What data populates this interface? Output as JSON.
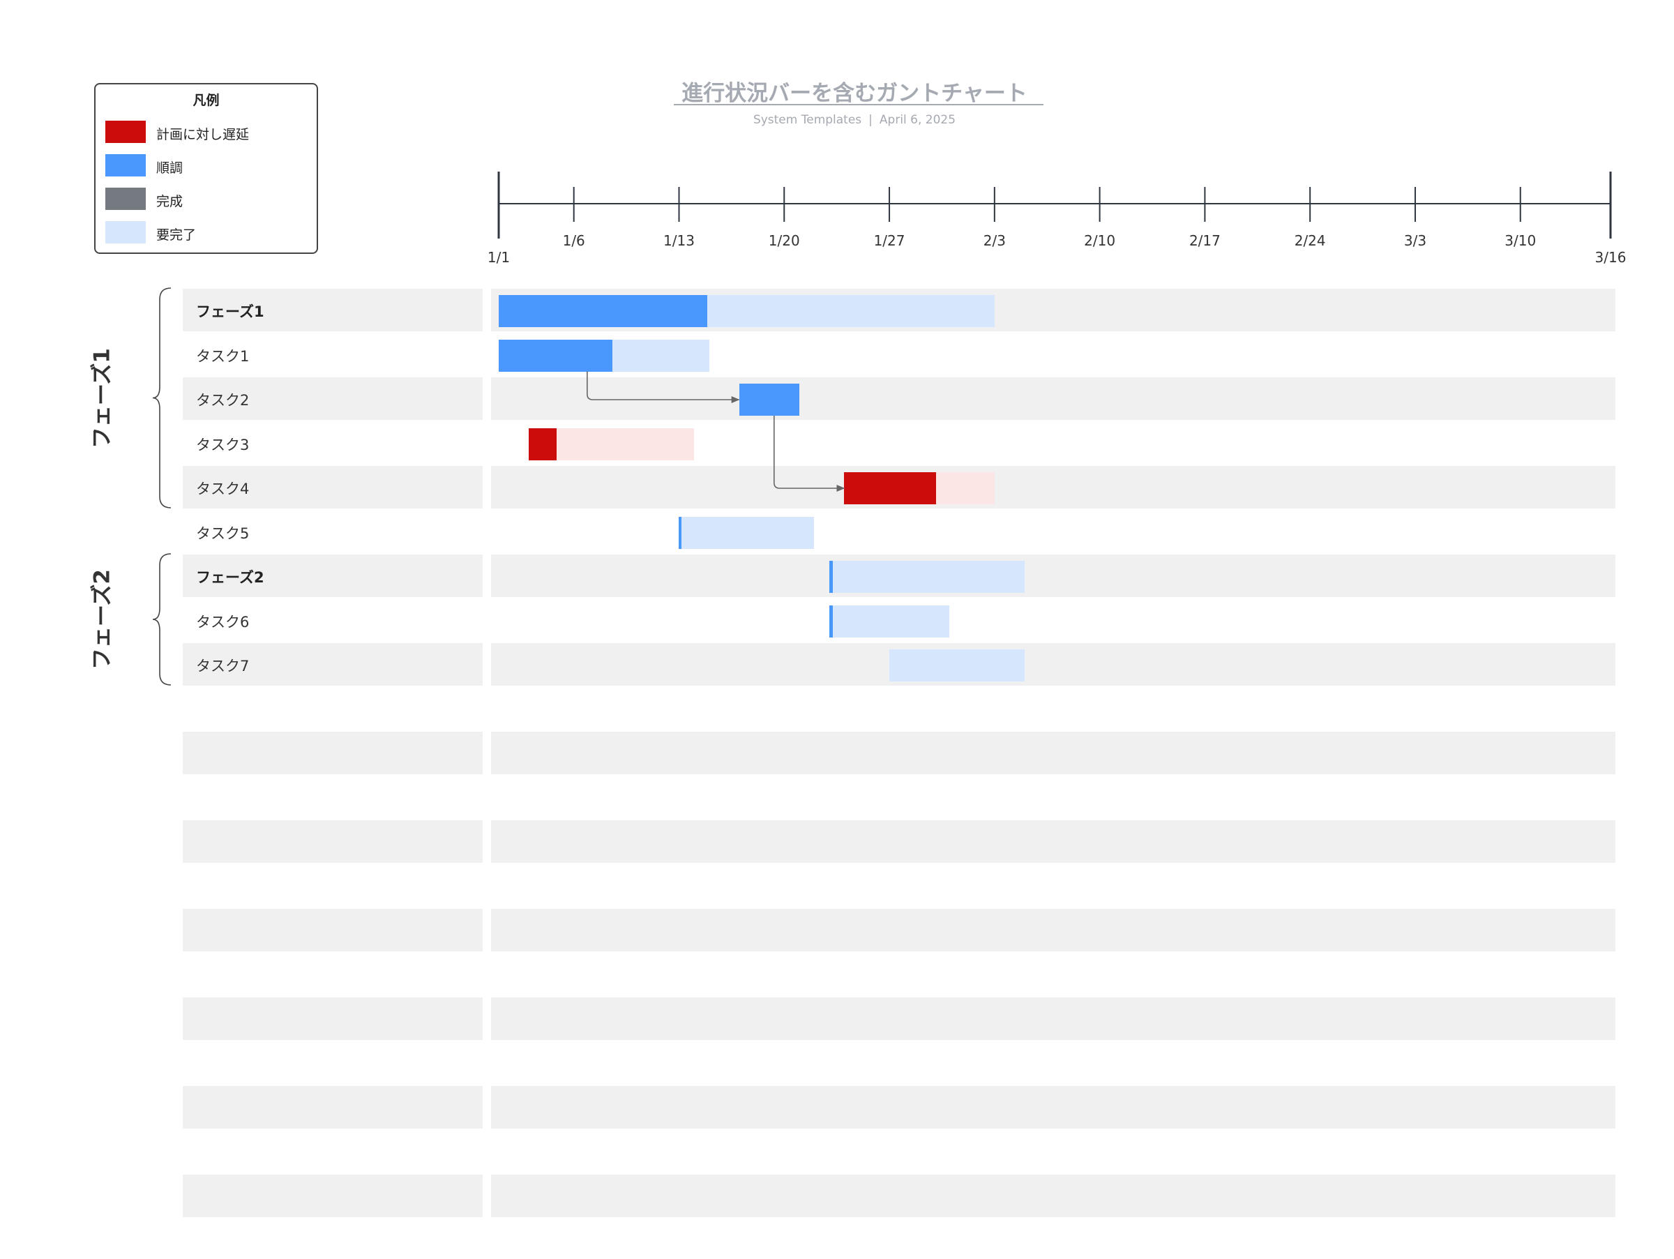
{
  "title": "進行状況バーを含むガントチャート",
  "subtitle": {
    "source": "System Templates",
    "separator": "|",
    "date": "April 6, 2025"
  },
  "legend": {
    "title": "凡例",
    "items": [
      {
        "label": "計画に対し遅延",
        "color": "#cc0b0b"
      },
      {
        "label": "順調",
        "color": "#4a98fd"
      },
      {
        "label": "完成",
        "color": "#757a80"
      },
      {
        "label": "要完了",
        "color": "#d6e7fd"
      }
    ]
  },
  "colors": {
    "on_track": "#4a98fd",
    "on_track_remaining": "#d6e7fd",
    "delayed": "#cc0b0b",
    "delayed_remaining": "#fbe5e5",
    "row_band": "#eff0ef",
    "axis": "#2f3640",
    "connector": "#666666"
  },
  "chart_data": {
    "type": "gantt",
    "axis_start": "2025-01-01",
    "axis_end": "2025-03-16",
    "ticks": [
      "1/1",
      "1/6",
      "1/13",
      "1/20",
      "1/27",
      "2/3",
      "2/10",
      "2/17",
      "2/24",
      "3/3",
      "3/10",
      "3/16"
    ],
    "groups": [
      {
        "label": "フェーズ1",
        "rows": [
          "フェーズ1",
          "タスク1",
          "タスク2",
          "タスク3",
          "タスク4"
        ]
      },
      {
        "label": "フェーズ2",
        "rows": [
          "フェーズ2",
          "タスク6",
          "タスク7"
        ]
      }
    ],
    "rows": [
      {
        "label": "フェーズ1",
        "summary": true,
        "start": "2025-01-01",
        "end": "2025-02-03",
        "progress": 0.42,
        "status": "on_track"
      },
      {
        "label": "タスク1",
        "summary": false,
        "start": "2025-01-01",
        "end": "2025-01-15",
        "progress": 0.54,
        "status": "on_track"
      },
      {
        "label": "タスク2",
        "summary": false,
        "start": "2025-01-17",
        "end": "2025-01-21",
        "progress": 1.0,
        "status": "on_track"
      },
      {
        "label": "タスク3",
        "summary": false,
        "start": "2025-01-03",
        "end": "2025-01-14",
        "progress": 0.17,
        "status": "delayed"
      },
      {
        "label": "タスク4",
        "summary": false,
        "start": "2025-01-24",
        "end": "2025-02-03",
        "progress": 0.61,
        "status": "delayed"
      },
      {
        "label": "タスク5",
        "summary": false,
        "start": "2025-01-13",
        "end": "2025-01-22",
        "progress": 0.02,
        "status": "on_track"
      },
      {
        "label": "フェーズ2",
        "summary": true,
        "start": "2025-01-23",
        "end": "2025-02-05",
        "progress": 0.02,
        "status": "on_track"
      },
      {
        "label": "タスク6",
        "summary": false,
        "start": "2025-01-23",
        "end": "2025-01-31",
        "progress": 0.03,
        "status": "on_track"
      },
      {
        "label": "タスク7",
        "summary": false,
        "start": "2025-01-27",
        "end": "2025-02-05",
        "progress": 0.0,
        "status": "on_track"
      }
    ],
    "dependencies": [
      {
        "from": "タスク1",
        "to": "タスク2"
      },
      {
        "from": "タスク2",
        "to": "タスク4"
      }
    ]
  }
}
